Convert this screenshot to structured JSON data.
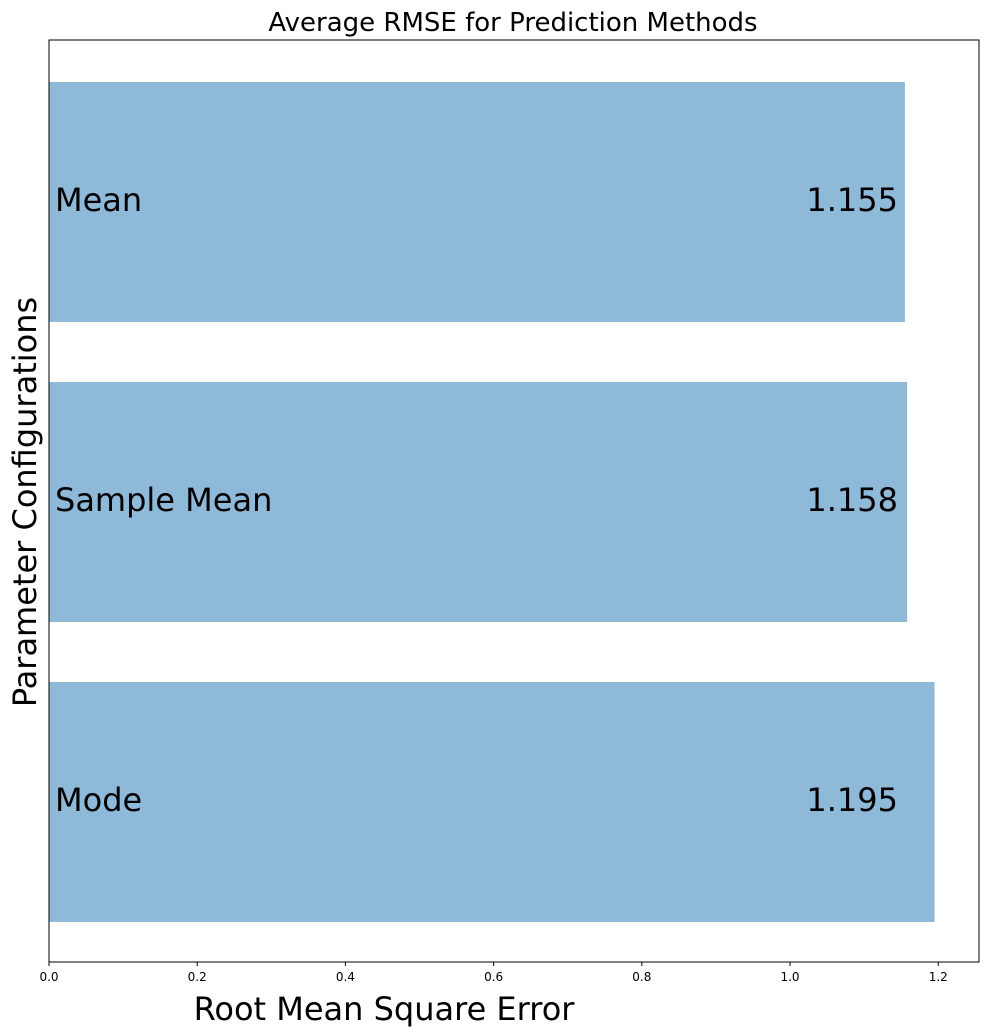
{
  "chart_data": {
    "type": "bar",
    "orientation": "horizontal",
    "title": "Average RMSE for Prediction Methods",
    "xlabel": "Root Mean Square Error",
    "ylabel": "Parameter Configurations",
    "xlim": [
      0,
      1.255
    ],
    "xticks": [
      "0.0",
      "0.2",
      "0.4",
      "0.6",
      "0.8",
      "1.0",
      "1.2"
    ],
    "categories": [
      "Mean",
      "Sample Mean",
      "Mode"
    ],
    "values": [
      1.155,
      1.158,
      1.195
    ],
    "value_labels": [
      "1.155",
      "1.158",
      "1.195"
    ],
    "bar_color": "#8fb9d9",
    "grid": false,
    "legend": "none"
  }
}
